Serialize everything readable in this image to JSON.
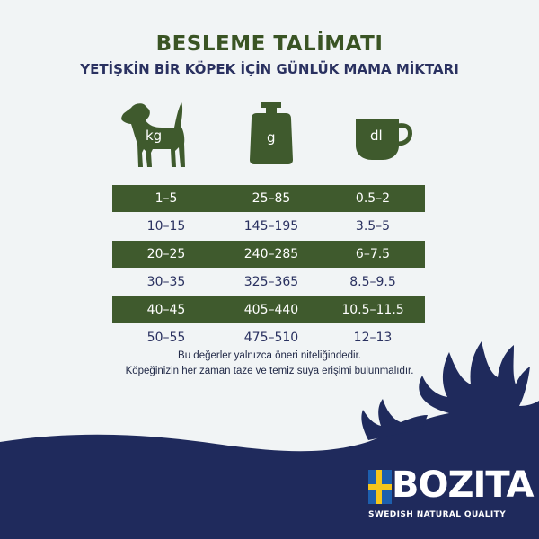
{
  "header": {
    "title": "BESLEME TALİMATI",
    "subtitle": "YETİŞKİN BİR KÖPEK İÇİN GÜNLÜK MAMA MİKTARI"
  },
  "columns": [
    {
      "icon": "dog-icon",
      "unit": "kg"
    },
    {
      "icon": "weight-icon",
      "unit": "g"
    },
    {
      "icon": "cup-icon",
      "unit": "dl"
    }
  ],
  "rows": [
    [
      "1–5",
      "25–85",
      "0.5–2"
    ],
    [
      "10–15",
      "145–195",
      "3.5–5"
    ],
    [
      "20–25",
      "240–285",
      "6–7.5"
    ],
    [
      "30–35",
      "325–365",
      "8.5–9.5"
    ],
    [
      "40–45",
      "405–440",
      "10.5–11.5"
    ],
    [
      "50–55",
      "475–510",
      "12–13"
    ]
  ],
  "note": {
    "line1": "Bu değerler yalnızca öneri niteliğindedir.",
    "line2": "Köpeğinizin her zaman taze ve temiz suya erişimi bulunmalıdır."
  },
  "brand": {
    "name": "BOZITA",
    "tagline": "SWEDISH NATURAL QUALITY"
  },
  "colors": {
    "green": "#3f5a2d",
    "navy": "#1f2a5c",
    "flag_blue": "#1d5fae",
    "flag_yellow": "#f6c61b"
  }
}
